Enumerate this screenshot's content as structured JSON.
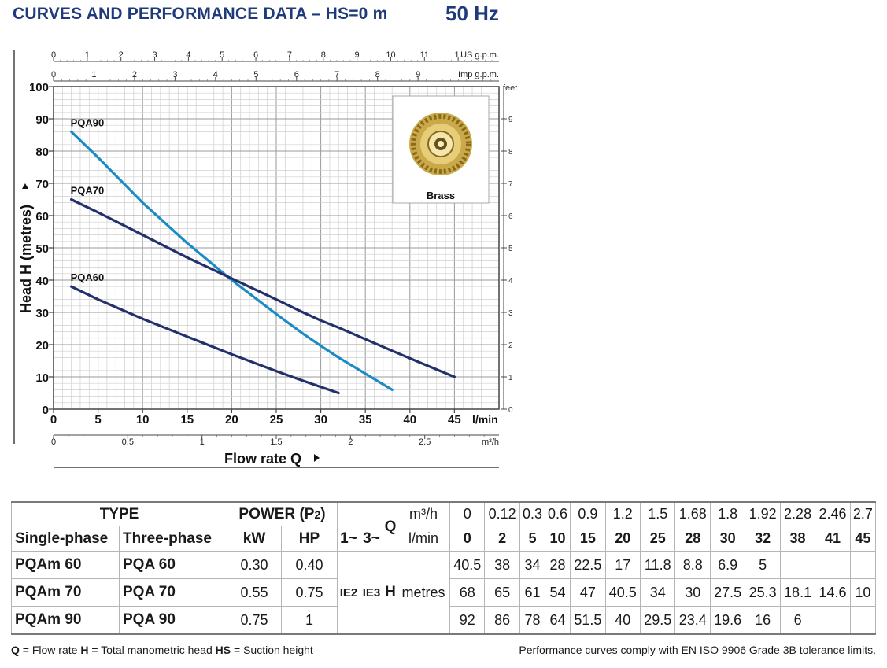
{
  "header": {
    "title": "CURVES AND PERFORMANCE DATA  –  HS=0 m",
    "frequency": "50 Hz"
  },
  "chart_data": {
    "type": "line",
    "ylabel": "Head H (metres)",
    "xlabel": "Flow rate Q",
    "x_unit": "l/min",
    "ylim": [
      0,
      100
    ],
    "xlim": [
      0,
      50
    ],
    "y_ticks": [
      "0",
      "10",
      "20",
      "30",
      "40",
      "50",
      "60",
      "70",
      "80",
      "90",
      "100"
    ],
    "x_ticks": [
      "0",
      "5",
      "10",
      "15",
      "20",
      "25",
      "30",
      "35",
      "40",
      "45"
    ],
    "m3h_unit": "m³/h",
    "m3h_ticks": [
      "0",
      "0.5",
      "1",
      "1.5",
      "2",
      "2.5"
    ],
    "usgpm_unit": "US g.p.m.",
    "usgpm_ticks": [
      "0",
      "1",
      "2",
      "3",
      "4",
      "5",
      "6",
      "7",
      "8",
      "9",
      "10",
      "11",
      "1."
    ],
    "impgpm_unit": "Imp g.p.m.",
    "impgpm_ticks": [
      "0",
      "1",
      "2",
      "3",
      "4",
      "5",
      "6",
      "7",
      "8",
      "9"
    ],
    "feet_unit": "feet",
    "feet_ticks": [
      "0",
      "1",
      "2",
      "3",
      "4",
      "5",
      "6",
      "7",
      "8",
      "9"
    ],
    "inset_label": "Brass",
    "series": [
      {
        "name": "PQA90",
        "color": "#1a8bc4",
        "x": [
          2,
          5,
          10,
          15,
          20,
          25,
          28,
          30,
          32,
          38
        ],
        "y": [
          86,
          78,
          64,
          51.5,
          40,
          29.5,
          23.4,
          19.6,
          16,
          6
        ]
      },
      {
        "name": "PQA70",
        "color": "#23306b",
        "x": [
          2,
          5,
          10,
          15,
          20,
          25,
          28,
          30,
          32,
          38,
          41,
          45
        ],
        "y": [
          65,
          61,
          54,
          47,
          40.5,
          34,
          30,
          27.5,
          25.3,
          18.1,
          14.6,
          10
        ]
      },
      {
        "name": "PQA60",
        "color": "#23306b",
        "x": [
          2,
          5,
          10,
          15,
          20,
          25,
          28,
          30,
          32
        ],
        "y": [
          38,
          34,
          28,
          22.5,
          17,
          11.8,
          8.8,
          6.9,
          5
        ]
      }
    ]
  },
  "table": {
    "type_label": "TYPE",
    "power_label": "POWER (P",
    "power_sub": "2",
    "power_close": ")",
    "single_phase": "Single-phase",
    "three_phase": "Three-phase",
    "kw": "kW",
    "hp": "HP",
    "phase1": "1~",
    "phase3": "3~",
    "ie1": "IE2",
    "ie3": "IE3",
    "q_label": "Q",
    "h_label": "H",
    "m3h_label": "m³/h",
    "lmin_label": "l/min",
    "metres_label": "metres",
    "m3h_values": [
      "0",
      "0.12",
      "0.3",
      "0.6",
      "0.9",
      "1.2",
      "1.5",
      "1.68",
      "1.8",
      "1.92",
      "2.28",
      "2.46",
      "2.7"
    ],
    "lmin_values": [
      "0",
      "2",
      "5",
      "10",
      "15",
      "20",
      "25",
      "28",
      "30",
      "32",
      "38",
      "41",
      "45"
    ],
    "rows": [
      {
        "single": "PQAm 60",
        "three": "PQA 60",
        "kw": "0.30",
        "hp": "0.40",
        "h": [
          "40.5",
          "38",
          "34",
          "28",
          "22.5",
          "17",
          "11.8",
          "8.8",
          "6.9",
          "5",
          "",
          "",
          ""
        ]
      },
      {
        "single": "PQAm 70",
        "three": "PQA 70",
        "kw": "0.55",
        "hp": "0.75",
        "h": [
          "68",
          "65",
          "61",
          "54",
          "47",
          "40.5",
          "34",
          "30",
          "27.5",
          "25.3",
          "18.1",
          "14.6",
          "10"
        ]
      },
      {
        "single": "PQAm 90",
        "three": "PQA 90",
        "kw": "0.75",
        "hp": "1",
        "h": [
          "92",
          "86",
          "78",
          "64",
          "51.5",
          "40",
          "29.5",
          "23.4",
          "19.6",
          "16",
          "6",
          "",
          ""
        ]
      }
    ]
  },
  "footer": {
    "q_abbr": "Q",
    "q_text": " = Flow rate  ",
    "h_abbr": "H",
    "h_text": " = Total manometric head  ",
    "hs_abbr": "HS",
    "hs_text": " = Suction height",
    "note": "Performance curves comply with EN ISO 9906 Grade 3B tolerance limits."
  }
}
